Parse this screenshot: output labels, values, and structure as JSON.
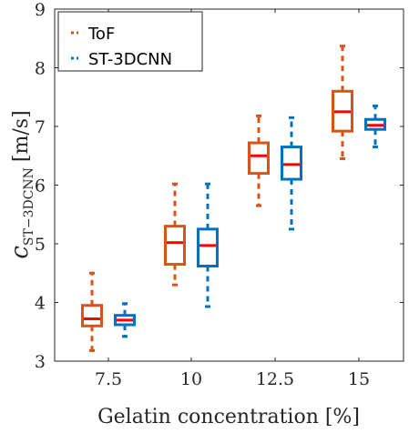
{
  "chart_data": {
    "type": "box",
    "categories": [
      "7.5",
      "10",
      "12.5",
      "15"
    ],
    "xlabel": "Gelatin concentration [%]",
    "ylabel_main": "c",
    "ylabel_sub": "ST−3DCNN",
    "ylabel_unit": "[m/s]",
    "ylim": [
      3,
      9
    ],
    "yticks": [
      "3",
      "4",
      "5",
      "6",
      "7",
      "8",
      "9"
    ],
    "grid": false,
    "legend_position": "top-left",
    "median_color": "#FF0000",
    "series": [
      {
        "name": "ToF",
        "color": "#D95319",
        "boxes": [
          {
            "whisker_low": 3.18,
            "q1": 3.6,
            "median": 3.72,
            "q3": 3.95,
            "whisker_high": 4.5
          },
          {
            "whisker_low": 4.3,
            "q1": 4.65,
            "median": 5.02,
            "q3": 5.3,
            "whisker_high": 6.02
          },
          {
            "whisker_low": 5.65,
            "q1": 6.2,
            "median": 6.5,
            "q3": 6.72,
            "whisker_high": 7.18
          },
          {
            "whisker_low": 6.45,
            "q1": 6.92,
            "median": 7.25,
            "q3": 7.6,
            "whisker_high": 8.37
          }
        ]
      },
      {
        "name": "ST-3DCNN",
        "color": "#0072BD",
        "boxes": [
          {
            "whisker_low": 3.42,
            "q1": 3.62,
            "median": 3.7,
            "q3": 3.78,
            "whisker_high": 3.98
          },
          {
            "whisker_low": 3.93,
            "q1": 4.62,
            "median": 4.97,
            "q3": 5.25,
            "whisker_high": 6.02
          },
          {
            "whisker_low": 5.25,
            "q1": 6.1,
            "median": 6.35,
            "q3": 6.65,
            "whisker_high": 7.15
          },
          {
            "whisker_low": 6.65,
            "q1": 6.95,
            "median": 7.02,
            "q3": 7.12,
            "whisker_high": 7.35
          }
        ]
      }
    ]
  }
}
